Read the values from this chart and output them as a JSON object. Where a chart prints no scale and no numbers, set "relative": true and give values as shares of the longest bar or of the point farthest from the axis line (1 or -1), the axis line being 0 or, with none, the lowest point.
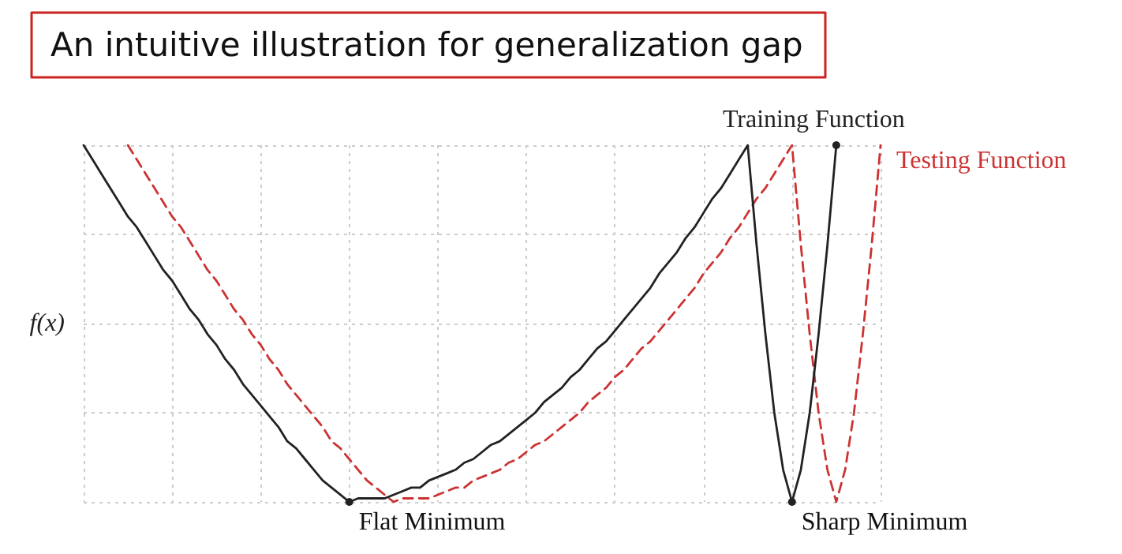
{
  "chart_data": {
    "type": "line",
    "title": "An intuitive illustration for generalization gap",
    "ylabel": "f(x)",
    "relative": true,
    "grid": true,
    "legend": false,
    "categories": [
      null,
      null,
      null,
      null,
      null,
      null,
      null,
      null,
      null,
      null,
      null,
      null,
      null,
      null,
      null,
      null,
      null,
      null,
      null,
      null,
      null,
      null,
      null,
      null,
      null,
      null,
      null,
      null,
      null,
      null,
      null,
      null,
      null,
      null,
      null,
      null,
      null,
      null,
      null,
      null,
      null,
      null,
      null,
      null,
      null,
      null,
      null,
      null,
      null,
      null,
      null,
      null,
      null,
      null,
      null,
      null,
      null,
      null,
      null,
      null,
      null,
      null,
      null,
      null,
      null,
      null,
      null,
      null,
      null,
      null,
      null,
      null,
      null,
      null,
      null,
      null,
      null,
      null,
      null,
      null,
      null,
      null,
      null,
      null,
      null,
      null,
      null,
      null,
      null,
      null,
      null
    ],
    "annotations": [
      "Flat Minimum",
      "Sharp Minimum"
    ],
    "series": [
      {
        "name": "Training Function",
        "color": "#222222",
        "line_style": "solid",
        "values": [
          1,
          0.96,
          0.92,
          0.88,
          0.84,
          0.8,
          0.77,
          0.73,
          0.69,
          0.65,
          0.62,
          0.58,
          0.54,
          0.51,
          0.47,
          0.44,
          0.4,
          0.37,
          0.33,
          0.3,
          0.27,
          0.24,
          0.21,
          0.17,
          0.15,
          0.12,
          0.09,
          0.06,
          0.04,
          0.02,
          0,
          0.01,
          0.01,
          0.01,
          0.01,
          0.02,
          0.03,
          0.04,
          0.04,
          0.06,
          0.07,
          0.08,
          0.09,
          0.11,
          0.12,
          0.14,
          0.16,
          0.17,
          0.19,
          0.21,
          0.23,
          0.25,
          0.28,
          0.3,
          0.32,
          0.35,
          0.37,
          0.4,
          0.43,
          0.45,
          0.48,
          0.51,
          0.54,
          0.57,
          0.6,
          0.64,
          0.67,
          0.7,
          0.74,
          0.77,
          0.81,
          0.85,
          0.88,
          0.92,
          0.96,
          1,
          0.72,
          0.47,
          0.25,
          0.09,
          0,
          0.09,
          0.25,
          0.47,
          0.72,
          1,
          null,
          null,
          null,
          null,
          null
        ]
      },
      {
        "name": "Testing Function",
        "color": "#cc3333",
        "line_style": "dashed",
        "values": [
          null,
          null,
          null,
          null,
          null,
          1,
          0.96,
          0.92,
          0.88,
          0.84,
          0.8,
          0.77,
          0.73,
          0.69,
          0.65,
          0.62,
          0.58,
          0.54,
          0.51,
          0.47,
          0.44,
          0.4,
          0.37,
          0.33,
          0.3,
          0.27,
          0.24,
          0.21,
          0.17,
          0.15,
          0.12,
          0.09,
          0.06,
          0.04,
          0.02,
          0,
          0.01,
          0.01,
          0.01,
          0.01,
          0.02,
          0.03,
          0.04,
          0.04,
          0.06,
          0.07,
          0.08,
          0.09,
          0.11,
          0.12,
          0.14,
          0.16,
          0.17,
          0.19,
          0.21,
          0.23,
          0.25,
          0.28,
          0.3,
          0.32,
          0.35,
          0.37,
          0.4,
          0.43,
          0.45,
          0.48,
          0.51,
          0.54,
          0.57,
          0.6,
          0.64,
          0.67,
          0.7,
          0.74,
          0.77,
          0.81,
          0.85,
          0.88,
          0.92,
          0.96,
          1,
          0.72,
          0.47,
          0.25,
          0.09,
          0,
          0.09,
          0.25,
          0.47,
          0.72,
          1
        ]
      }
    ]
  }
}
